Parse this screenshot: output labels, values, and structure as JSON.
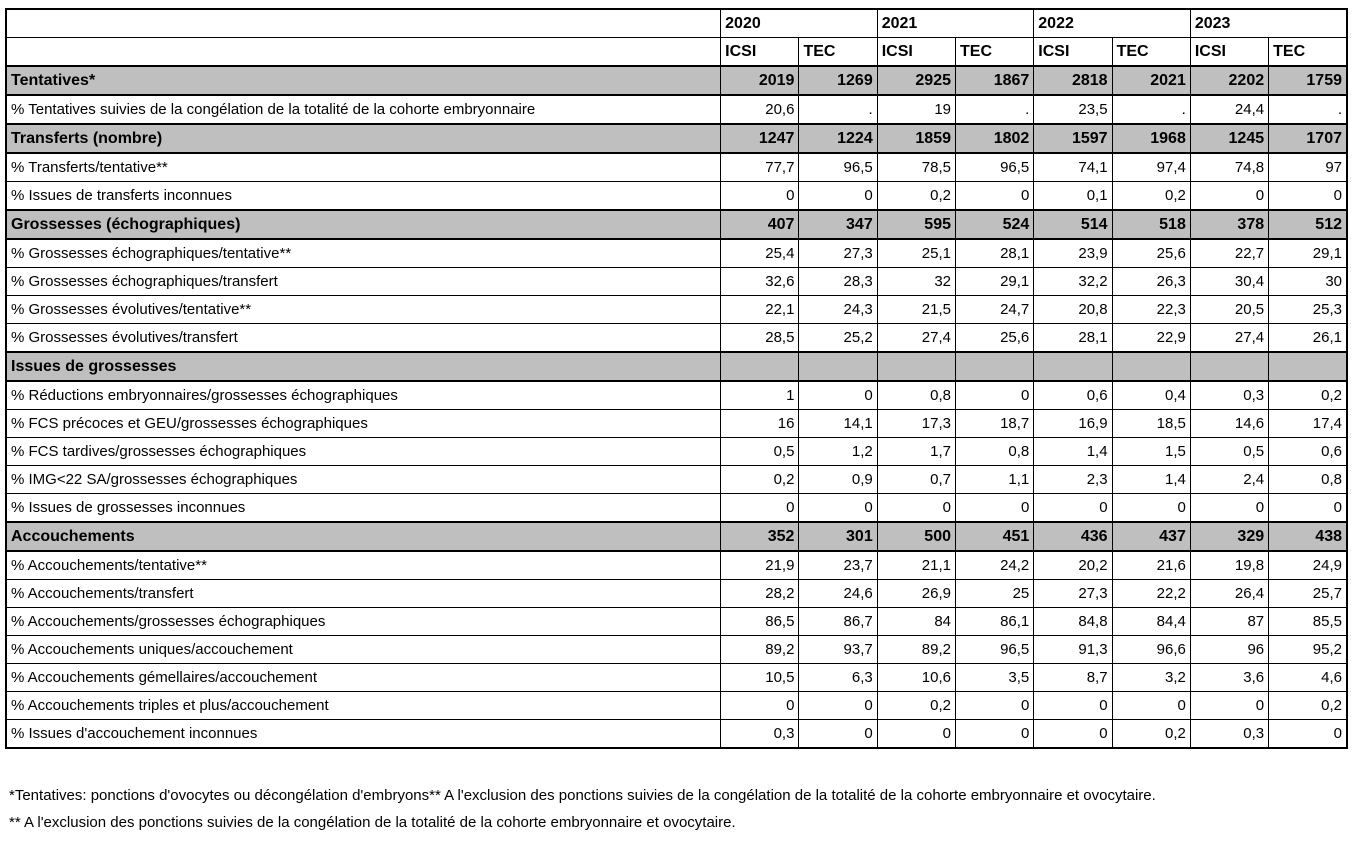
{
  "table": {
    "years": [
      "2020",
      "2021",
      "2022",
      "2023"
    ],
    "subcolumns": [
      "ICSI",
      "TEC"
    ],
    "rows": [
      {
        "label": "Tentatives*",
        "type": "section",
        "values": [
          "2019",
          "1269",
          "2925",
          "1867",
          "2818",
          "2021",
          "2202",
          "1759"
        ]
      },
      {
        "label": "% Tentatives suivies de la congélation de la totalité de la cohorte embryonnaire",
        "type": "data",
        "values": [
          "20,6",
          ".",
          "19",
          ".",
          "23,5",
          ".",
          "24,4",
          "."
        ]
      },
      {
        "label": "Transferts (nombre)",
        "type": "section",
        "values": [
          "1247",
          "1224",
          "1859",
          "1802",
          "1597",
          "1968",
          "1245",
          "1707"
        ]
      },
      {
        "label": "% Transferts/tentative**",
        "type": "data",
        "values": [
          "77,7",
          "96,5",
          "78,5",
          "96,5",
          "74,1",
          "97,4",
          "74,8",
          "97"
        ]
      },
      {
        "label": "% Issues de transferts inconnues",
        "type": "data",
        "values": [
          "0",
          "0",
          "0,2",
          "0",
          "0,1",
          "0,2",
          "0",
          "0"
        ]
      },
      {
        "label": "Grossesses (échographiques)",
        "type": "section",
        "values": [
          "407",
          "347",
          "595",
          "524",
          "514",
          "518",
          "378",
          "512"
        ]
      },
      {
        "label": "% Grossesses échographiques/tentative**",
        "type": "data",
        "values": [
          "25,4",
          "27,3",
          "25,1",
          "28,1",
          "23,9",
          "25,6",
          "22,7",
          "29,1"
        ]
      },
      {
        "label": "% Grossesses échographiques/transfert",
        "type": "data",
        "values": [
          "32,6",
          "28,3",
          "32",
          "29,1",
          "32,2",
          "26,3",
          "30,4",
          "30"
        ]
      },
      {
        "label": "% Grossesses évolutives/tentative**",
        "type": "data",
        "values": [
          "22,1",
          "24,3",
          "21,5",
          "24,7",
          "20,8",
          "22,3",
          "20,5",
          "25,3"
        ]
      },
      {
        "label": "% Grossesses évolutives/transfert",
        "type": "data",
        "values": [
          "28,5",
          "25,2",
          "27,4",
          "25,6",
          "28,1",
          "22,9",
          "27,4",
          "26,1"
        ]
      },
      {
        "label": "Issues de grossesses",
        "type": "section",
        "values": [
          "",
          "",
          "",
          "",
          "",
          "",
          "",
          ""
        ]
      },
      {
        "label": "% Réductions embryonnaires/grossesses échographiques",
        "type": "data",
        "values": [
          "1",
          "0",
          "0,8",
          "0",
          "0,6",
          "0,4",
          "0,3",
          "0,2"
        ]
      },
      {
        "label": "% FCS précoces et GEU/grossesses échographiques",
        "type": "data",
        "values": [
          "16",
          "14,1",
          "17,3",
          "18,7",
          "16,9",
          "18,5",
          "14,6",
          "17,4"
        ]
      },
      {
        "label": "% FCS tardives/grossesses échographiques",
        "type": "data",
        "values": [
          "0,5",
          "1,2",
          "1,7",
          "0,8",
          "1,4",
          "1,5",
          "0,5",
          "0,6"
        ]
      },
      {
        "label": "% IMG<22 SA/grossesses échographiques",
        "type": "data",
        "values": [
          "0,2",
          "0,9",
          "0,7",
          "1,1",
          "2,3",
          "1,4",
          "2,4",
          "0,8"
        ]
      },
      {
        "label": "% Issues de grossesses inconnues",
        "type": "data",
        "values": [
          "0",
          "0",
          "0",
          "0",
          "0",
          "0",
          "0",
          "0"
        ]
      },
      {
        "label": "Accouchements",
        "type": "section",
        "values": [
          "352",
          "301",
          "500",
          "451",
          "436",
          "437",
          "329",
          "438"
        ]
      },
      {
        "label": "% Accouchements/tentative**",
        "type": "data",
        "values": [
          "21,9",
          "23,7",
          "21,1",
          "24,2",
          "20,2",
          "21,6",
          "19,8",
          "24,9"
        ]
      },
      {
        "label": "% Accouchements/transfert",
        "type": "data",
        "values": [
          "28,2",
          "24,6",
          "26,9",
          "25",
          "27,3",
          "22,2",
          "26,4",
          "25,7"
        ]
      },
      {
        "label": "% Accouchements/grossesses échographiques",
        "type": "data",
        "values": [
          "86,5",
          "86,7",
          "84",
          "86,1",
          "84,8",
          "84,4",
          "87",
          "85,5"
        ]
      },
      {
        "label": "% Accouchements uniques/accouchement",
        "type": "data",
        "values": [
          "89,2",
          "93,7",
          "89,2",
          "96,5",
          "91,3",
          "96,6",
          "96",
          "95,2"
        ]
      },
      {
        "label": "% Accouchements gémellaires/accouchement",
        "type": "data",
        "values": [
          "10,5",
          "6,3",
          "10,6",
          "3,5",
          "8,7",
          "3,2",
          "3,6",
          "4,6"
        ]
      },
      {
        "label": "% Accouchements triples et plus/accouchement",
        "type": "data",
        "values": [
          "0",
          "0",
          "0,2",
          "0",
          "0",
          "0",
          "0",
          "0,2"
        ]
      },
      {
        "label": "% Issues d'accouchement inconnues",
        "type": "data",
        "values": [
          "0,3",
          "0",
          "0",
          "0",
          "0",
          "0,2",
          "0,3",
          "0"
        ]
      }
    ]
  },
  "footnotes": [
    "*Tentatives: ponctions d'ovocytes ou décongélation d'embryons** A l'exclusion des ponctions suivies de la congélation de la totalité de la cohorte embryonnaire et ovocytaire.",
    "** A l'exclusion des ponctions suivies de la congélation de la totalité de la cohorte embryonnaire et ovocytaire."
  ],
  "colors": {
    "section_bg": "#BFBFBF",
    "border": "#000000",
    "background": "#FFFFFF"
  }
}
